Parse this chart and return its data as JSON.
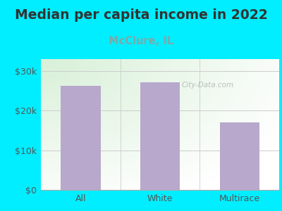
{
  "title": "Median per capita income in 2022",
  "subtitle": "McClure, IL",
  "categories": [
    "All",
    "White",
    "Multirace"
  ],
  "values": [
    26200,
    27200,
    17000
  ],
  "bar_color": "#b8a8cc",
  "title_color": "#333333",
  "subtitle_color": "#7aabaa",
  "bg_color": "#00eeff",
  "plot_bg_topleft": "#d8f0d8",
  "plot_bg_right": "#ffffff",
  "yticks": [
    0,
    10000,
    20000,
    30000
  ],
  "ytick_labels": [
    "$0",
    "$10k",
    "$20k",
    "$30k"
  ],
  "ylim": [
    0,
    33000
  ],
  "watermark": "City-Data.com",
  "title_fontsize": 13.5,
  "subtitle_fontsize": 10.5,
  "tick_fontsize": 9,
  "tick_color": "#555555",
  "grid_color": "#cccccc"
}
